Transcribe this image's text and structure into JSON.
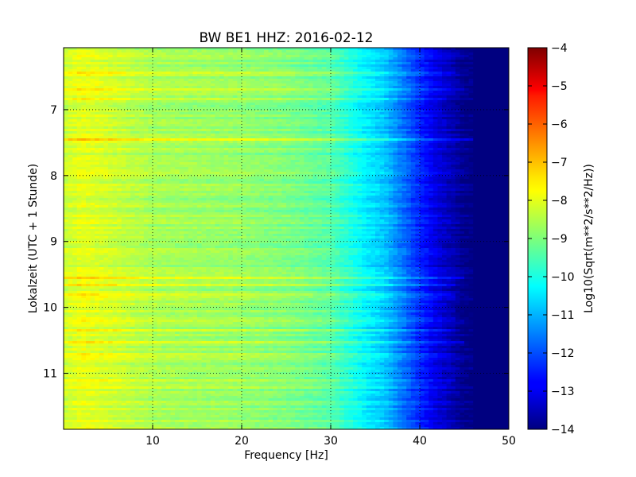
{
  "chart_data": {
    "type": "heatmap",
    "title": "BW BE1 HHZ: 2016-02-12",
    "xlabel": "Frequency [Hz]",
    "ylabel": "Lokalzeit (UTC + 1 Stunde)",
    "colorbar_label": "Log10(Sqrt(m**2/s**2/Hz))",
    "xlim": [
      0,
      50
    ],
    "ylim": [
      6.06,
      11.85
    ],
    "y_inverted": true,
    "x_ticks": [
      10,
      20,
      30,
      40,
      50
    ],
    "x_tick_labels": [
      "10",
      "20",
      "30",
      "40",
      "50"
    ],
    "y_ticks": [
      7,
      8,
      9,
      10,
      11
    ],
    "y_tick_labels": [
      "7",
      "8",
      "9",
      "10",
      "11"
    ],
    "color_range": [
      -14,
      -4
    ],
    "colorbar_ticks": [
      -4,
      -5,
      -6,
      -7,
      -8,
      -9,
      -10,
      -11,
      -12,
      -13,
      -14
    ],
    "colorbar_tick_labels": [
      "−4",
      "−5",
      "−6",
      "−7",
      "−8",
      "−9",
      "−10",
      "−11",
      "−12",
      "−13",
      "−14"
    ],
    "colormap": "jet",
    "grid": true,
    "profile": {
      "frequency_hz": [
        0,
        2,
        5,
        10,
        15,
        20,
        25,
        30,
        32,
        34,
        36,
        38,
        40,
        42,
        44,
        45,
        46,
        50
      ],
      "log10_psd": [
        -8.3,
        -8.0,
        -8.2,
        -8.6,
        -8.7,
        -8.8,
        -9.0,
        -9.4,
        -9.9,
        -10.4,
        -10.8,
        -11.6,
        -12.4,
        -13.1,
        -13.6,
        -13.9,
        -14,
        -14
      ]
    },
    "bright_bands": [
      {
        "time": 7.46,
        "delta": 1.4,
        "f_end": 46
      },
      {
        "time": 6.68,
        "delta": 0.6,
        "f_end": 45
      },
      {
        "time": 6.45,
        "delta": 0.5,
        "f_end": 44
      },
      {
        "time": 6.85,
        "delta": 0.4,
        "f_end": 43
      },
      {
        "time": 9.55,
        "delta": 0.6,
        "f_end": 45
      },
      {
        "time": 9.65,
        "delta": 0.7,
        "f_end": 44
      },
      {
        "time": 9.82,
        "delta": 0.8,
        "f_end": 44
      },
      {
        "time": 9.97,
        "delta": 0.5,
        "f_end": 43
      },
      {
        "time": 10.05,
        "delta": 0.6,
        "f_end": 44
      },
      {
        "time": 10.18,
        "delta": 0.5,
        "f_end": 44
      },
      {
        "time": 10.35,
        "delta": 0.5,
        "f_end": 44
      },
      {
        "time": 10.52,
        "delta": 0.6,
        "f_end": 45
      },
      {
        "time": 10.72,
        "delta": 0.5,
        "f_end": 44
      },
      {
        "time": 11.12,
        "delta": 0.6,
        "f_end": 44
      },
      {
        "time": 11.2,
        "delta": 0.4,
        "f_end": 43
      }
    ]
  }
}
